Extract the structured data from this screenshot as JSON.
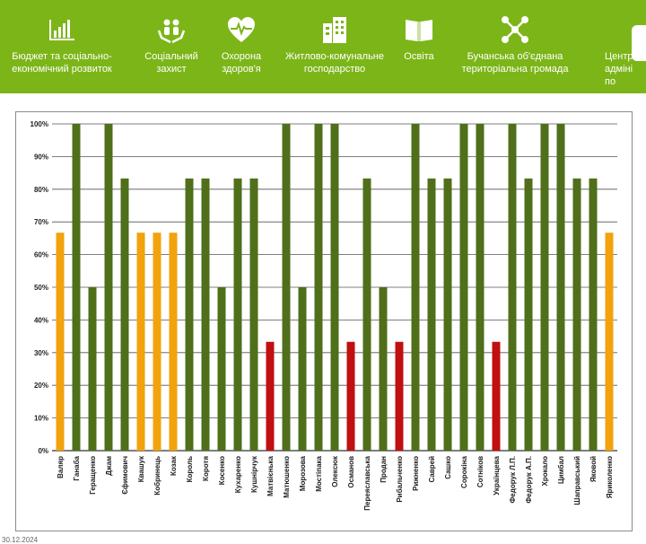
{
  "nav": {
    "items": [
      {
        "label": "Бюджет та соціально-\nекономічний розвиток",
        "icon": "bar-chart-icon"
      },
      {
        "label": "Соціальний\nзахист",
        "icon": "social-protection-icon"
      },
      {
        "label": "Охорона\nздоров'я",
        "icon": "heart-pulse-icon"
      },
      {
        "label": "Житлово-комунальне\nгосподарство",
        "icon": "buildings-icon"
      },
      {
        "label": "Освіта",
        "icon": "book-icon"
      },
      {
        "label": "Бучанська об'єднана\nтериторіальна громада",
        "icon": "network-icon"
      },
      {
        "label": "Центр\nадміні\nпо",
        "icon": ""
      }
    ]
  },
  "colors": {
    "green_bar": "#4f6f1a",
    "orange_bar": "#f2a20c",
    "red_bar": "#c01010",
    "topbar": "#7cb518"
  },
  "footer": {
    "text": "30.12.2024"
  },
  "chart_data": {
    "type": "bar",
    "ylim": [
      0,
      100
    ],
    "yticks": [
      "0%",
      "10%",
      "20%",
      "30%",
      "40%",
      "50%",
      "60%",
      "70%",
      "80%",
      "90%",
      "100%"
    ],
    "grid": true,
    "categories": [
      "Валяр",
      "Ганаба",
      "Геращенко",
      "Джам",
      "Єфимович",
      "Квашук",
      "Кобринець",
      "Козак",
      "Король",
      "Коротя",
      "Косенко",
      "Кухаренко",
      "Кушнірчук",
      "Матвієнька",
      "Матюшенко",
      "Морозова",
      "Мостіпака",
      "Олексюк",
      "Османов",
      "Переяславська",
      "Продан",
      "Рибальченко",
      "Рижненко",
      "Саврей",
      "Сашко",
      "Сорокіна",
      "Сотніков",
      "Українцева",
      "Федорук Л.П.",
      "Федорук А.П.",
      "Хрокало",
      "Цимбал",
      "Шаправський",
      "Яковой",
      "Яриколенко"
    ],
    "values": [
      66.7,
      100,
      50,
      100,
      83.3,
      66.7,
      66.7,
      66.7,
      83.3,
      83.3,
      50,
      83.3,
      83.3,
      33.3,
      100,
      50,
      100,
      100,
      33.3,
      83.3,
      50,
      33.3,
      100,
      83.3,
      83.3,
      100,
      100,
      33.3,
      100,
      83.3,
      100,
      100,
      83.3,
      83.3,
      66.7
    ],
    "bar_colors": [
      "#f2a20c",
      "#4f6f1a",
      "#4f6f1a",
      "#4f6f1a",
      "#4f6f1a",
      "#f2a20c",
      "#f2a20c",
      "#f2a20c",
      "#4f6f1a",
      "#4f6f1a",
      "#4f6f1a",
      "#4f6f1a",
      "#4f6f1a",
      "#c01010",
      "#4f6f1a",
      "#4f6f1a",
      "#4f6f1a",
      "#4f6f1a",
      "#c01010",
      "#4f6f1a",
      "#4f6f1a",
      "#c01010",
      "#4f6f1a",
      "#4f6f1a",
      "#4f6f1a",
      "#4f6f1a",
      "#4f6f1a",
      "#c01010",
      "#4f6f1a",
      "#4f6f1a",
      "#4f6f1a",
      "#4f6f1a",
      "#4f6f1a",
      "#4f6f1a",
      "#f2a20c"
    ]
  }
}
